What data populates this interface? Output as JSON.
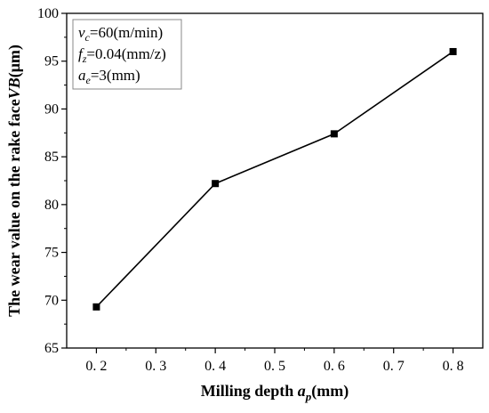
{
  "chart_data": {
    "type": "line",
    "x": [
      0.2,
      0.4,
      0.6,
      0.8
    ],
    "series": [
      {
        "values": [
          69.3,
          82.2,
          87.4,
          96.0
        ]
      }
    ],
    "xlabel": {
      "prefix": "Milling depth ",
      "var": "a",
      "sub": "p",
      "suffix": "(mm)"
    },
    "ylabel": {
      "prefix": "The wear value on the rake face",
      "var": "VB",
      "suffix": "(μm)"
    },
    "xlim": [
      0.15,
      0.85
    ],
    "ylim": [
      65,
      100
    ],
    "xticks": [
      0.2,
      0.3,
      0.4,
      0.5,
      0.6,
      0.7,
      0.8
    ],
    "xtick_labels": [
      "0. 2",
      "0. 3",
      "0. 4",
      "0. 5",
      "0. 6",
      "0. 7",
      "0. 8"
    ],
    "yticks": [
      65,
      70,
      75,
      80,
      85,
      90,
      95,
      100
    ],
    "ytick_labels": [
      "65",
      "70",
      "75",
      "80",
      "85",
      "90",
      "95",
      "100"
    ],
    "grid": false,
    "marker": "square",
    "line_color": "#000000",
    "annotations": [
      {
        "var": "v",
        "sub": "c",
        "text": "=60(m/min)"
      },
      {
        "var": "f",
        "sub": "z",
        "text": "=0.04(mm/z)"
      },
      {
        "var": "a",
        "sub": "e",
        "text": "=3(mm)"
      }
    ]
  }
}
